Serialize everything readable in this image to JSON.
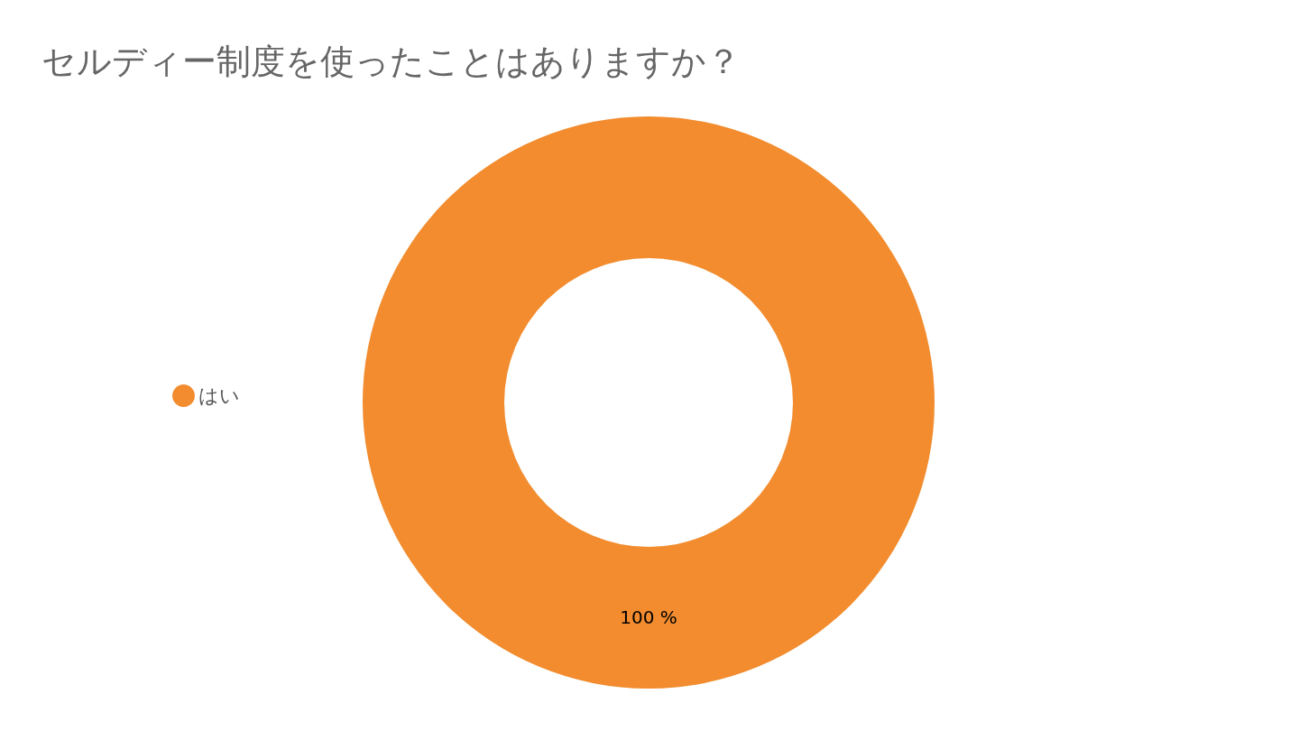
{
  "chart_data": {
    "type": "donut",
    "title": "セルディー制度を使ったことはありますか？",
    "categories": [
      "はい"
    ],
    "values": [
      100
    ],
    "colors": [
      "#f28c2e"
    ],
    "value_labels": [
      "100 %"
    ],
    "legend": "left"
  }
}
